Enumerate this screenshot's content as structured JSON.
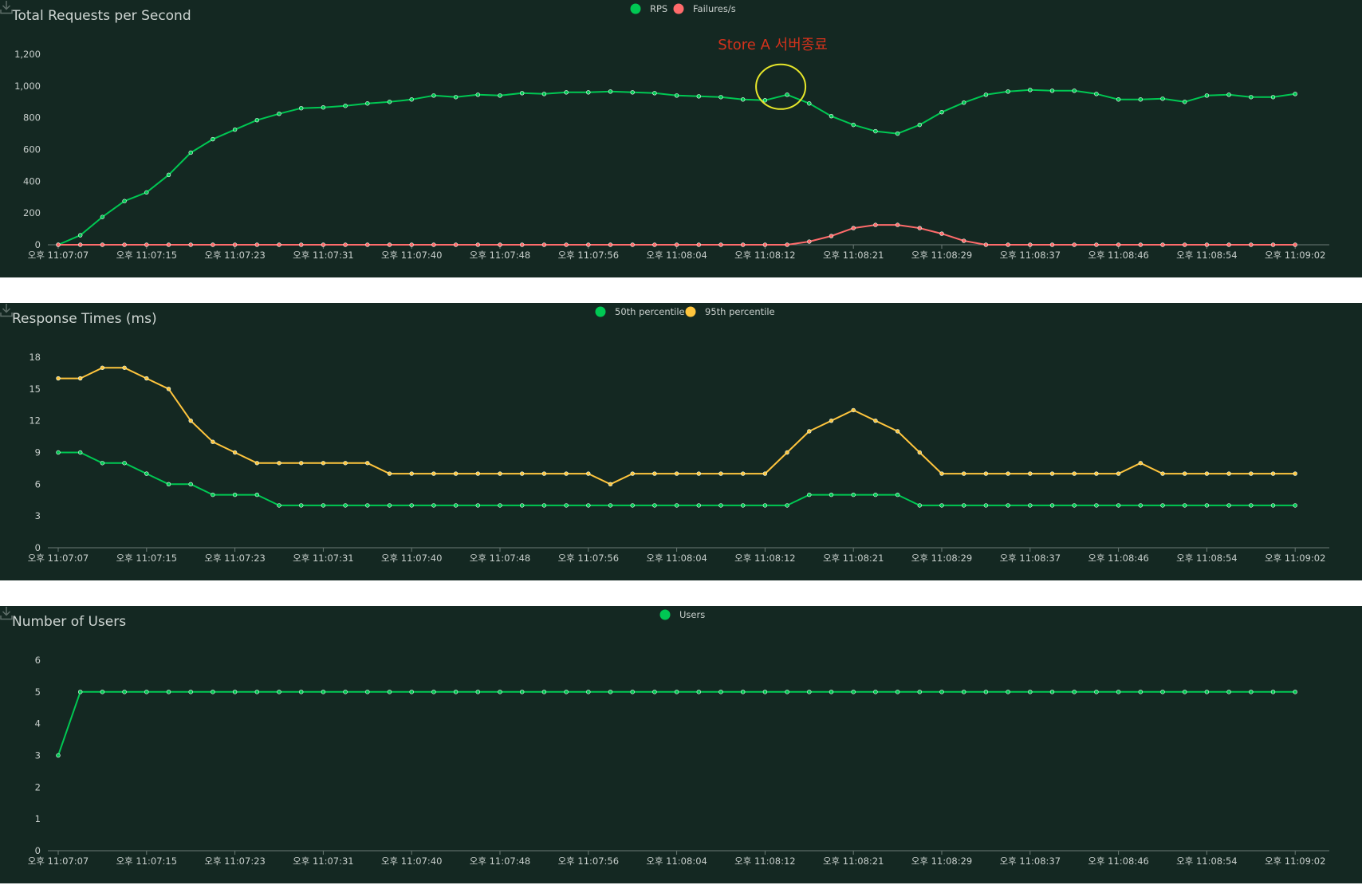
{
  "colors": {
    "background": "#142822",
    "text": "#c8cfcc",
    "axis": "#6b7a75",
    "green": "#00c853",
    "red": "#ff6b6b",
    "yellow": "#ffc53d",
    "annotation_text": "#d4321c",
    "annotation_circle": "#e6e62a"
  },
  "icons": {
    "download": "download-icon"
  },
  "chart_data": [
    {
      "type": "line",
      "title": "Total Requests per Second",
      "ylim": [
        0,
        1200
      ],
      "yticks": [
        0,
        200,
        400,
        600,
        800,
        1000,
        1200
      ],
      "ytick_labels": [
        "0",
        "200",
        "400",
        "600",
        "800",
        "1,000",
        "1,200"
      ],
      "xtick_labels": [
        "오후 11:07:07",
        "오후 11:07:15",
        "오후 11:07:23",
        "오후 11:07:31",
        "오후 11:07:40",
        "오후 11:07:48",
        "오후 11:07:56",
        "오후 11:08:04",
        "오후 11:08:12",
        "오후 11:08:21",
        "오후 11:08:29",
        "오후 11:08:37",
        "오후 11:08:46",
        "오후 11:08:54",
        "오후 11:09:02"
      ],
      "legend_position": "top-center",
      "series": [
        {
          "name": "RPS",
          "color": "#00c853",
          "values": [
            0,
            60,
            175,
            275,
            330,
            440,
            580,
            665,
            725,
            785,
            825,
            860,
            865,
            875,
            890,
            900,
            915,
            940,
            930,
            945,
            940,
            955,
            950,
            960,
            960,
            965,
            960,
            955,
            940,
            935,
            930,
            915,
            910,
            945,
            890,
            810,
            755,
            715,
            700,
            755,
            835,
            895,
            945,
            965,
            975,
            970,
            970,
            950,
            915,
            915,
            920,
            900,
            940,
            945,
            930,
            930,
            950
          ]
        },
        {
          "name": "Failures/s",
          "color": "#ff6b6b",
          "values": [
            0,
            0,
            0,
            0,
            0,
            0,
            0,
            0,
            0,
            0,
            0,
            0,
            0,
            0,
            0,
            0,
            0,
            0,
            0,
            0,
            0,
            0,
            0,
            0,
            0,
            0,
            0,
            0,
            0,
            0,
            0,
            0,
            0,
            0,
            20,
            55,
            105,
            125,
            125,
            105,
            70,
            25,
            0,
            0,
            0,
            0,
            0,
            0,
            0,
            0,
            0,
            0,
            0,
            0,
            0,
            0,
            0
          ]
        }
      ],
      "annotation": {
        "text": "Store A 서버종료",
        "at_index": 33
      }
    },
    {
      "type": "line",
      "title": "Response Times (ms)",
      "ylim": [
        0,
        18
      ],
      "yticks": [
        0,
        3,
        6,
        9,
        12,
        15,
        18
      ],
      "ytick_labels": [
        "0",
        "3",
        "6",
        "9",
        "12",
        "15",
        "18"
      ],
      "xtick_labels": [
        "오후 11:07:07",
        "오후 11:07:15",
        "오후 11:07:23",
        "오후 11:07:31",
        "오후 11:07:40",
        "오후 11:07:48",
        "오후 11:07:56",
        "오후 11:08:04",
        "오후 11:08:12",
        "오후 11:08:21",
        "오후 11:08:29",
        "오후 11:08:37",
        "오후 11:08:46",
        "오후 11:08:54",
        "오후 11:09:02"
      ],
      "legend_position": "top-center",
      "series": [
        {
          "name": "50th percentile",
          "color": "#00c853",
          "values": [
            9,
            9,
            8,
            8,
            7,
            6,
            6,
            5,
            5,
            5,
            4,
            4,
            4,
            4,
            4,
            4,
            4,
            4,
            4,
            4,
            4,
            4,
            4,
            4,
            4,
            4,
            4,
            4,
            4,
            4,
            4,
            4,
            4,
            4,
            5,
            5,
            5,
            5,
            5,
            4,
            4,
            4,
            4,
            4,
            4,
            4,
            4,
            4,
            4,
            4,
            4,
            4,
            4,
            4,
            4,
            4,
            4
          ]
        },
        {
          "name": "95th percentile",
          "color": "#ffc53d",
          "values": [
            16,
            16,
            17,
            17,
            16,
            15,
            12,
            10,
            9,
            8,
            8,
            8,
            8,
            8,
            8,
            7,
            7,
            7,
            7,
            7,
            7,
            7,
            7,
            7,
            7,
            6,
            7,
            7,
            7,
            7,
            7,
            7,
            7,
            9,
            11,
            12,
            13,
            12,
            11,
            9,
            7,
            7,
            7,
            7,
            7,
            7,
            7,
            7,
            7,
            8,
            7,
            7,
            7,
            7,
            7,
            7,
            7
          ]
        }
      ]
    },
    {
      "type": "line",
      "title": "Number of Users",
      "ylim": [
        0,
        6
      ],
      "yticks": [
        0,
        1,
        2,
        3,
        4,
        5,
        6
      ],
      "ytick_labels": [
        "0",
        "1",
        "2",
        "3",
        "4",
        "5",
        "6"
      ],
      "xtick_labels": [
        "오후 11:07:07",
        "오후 11:07:15",
        "오후 11:07:23",
        "오후 11:07:31",
        "오후 11:07:40",
        "오후 11:07:48",
        "오후 11:07:56",
        "오후 11:08:04",
        "오후 11:08:12",
        "오후 11:08:21",
        "오후 11:08:29",
        "오후 11:08:37",
        "오후 11:08:46",
        "오후 11:08:54",
        "오후 11:09:02"
      ],
      "legend_position": "top-center",
      "series": [
        {
          "name": "Users",
          "color": "#00c853",
          "values": [
            3,
            5,
            5,
            5,
            5,
            5,
            5,
            5,
            5,
            5,
            5,
            5,
            5,
            5,
            5,
            5,
            5,
            5,
            5,
            5,
            5,
            5,
            5,
            5,
            5,
            5,
            5,
            5,
            5,
            5,
            5,
            5,
            5,
            5,
            5,
            5,
            5,
            5,
            5,
            5,
            5,
            5,
            5,
            5,
            5,
            5,
            5,
            5,
            5,
            5,
            5,
            5,
            5,
            5,
            5,
            5,
            5
          ]
        }
      ]
    }
  ]
}
